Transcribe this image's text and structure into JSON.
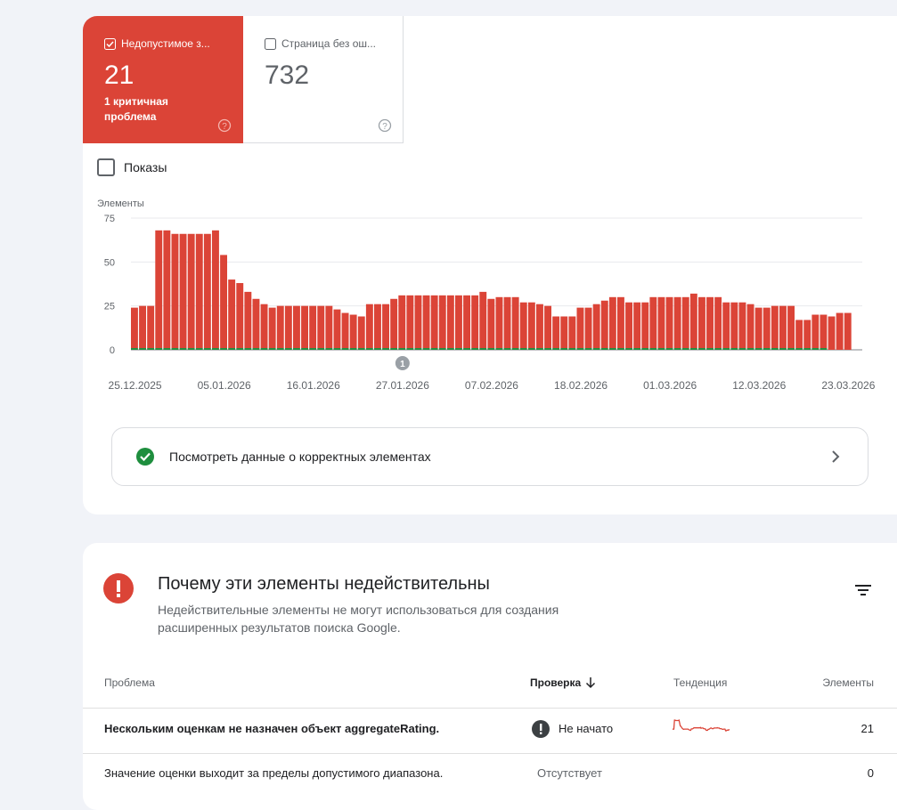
{
  "tiles": [
    {
      "label": "Недопустимое з...",
      "value": 21,
      "note": "1 критичная проблема",
      "checked": true
    },
    {
      "label": "Страница без ош...",
      "value": 732,
      "checked": false
    }
  ],
  "impressions_label": "Показы",
  "chart_data": {
    "type": "bar",
    "stacked": true,
    "y_label": "Элементы",
    "categories": [
      "25.12.2025",
      null,
      null,
      null,
      null,
      null,
      null,
      null,
      null,
      null,
      null,
      "05.01.2026",
      null,
      null,
      null,
      null,
      null,
      null,
      null,
      null,
      null,
      null,
      "16.01.2026",
      null,
      null,
      null,
      null,
      null,
      null,
      null,
      null,
      null,
      null,
      "27.01.2026",
      null,
      null,
      null,
      null,
      null,
      null,
      null,
      null,
      null,
      null,
      "07.02.2026",
      null,
      null,
      null,
      null,
      null,
      null,
      null,
      null,
      null,
      null,
      "18.02.2026",
      null,
      null,
      null,
      null,
      null,
      null,
      null,
      null,
      null,
      null,
      "01.03.2026",
      null,
      null,
      null,
      null,
      null,
      null,
      null,
      null,
      null,
      null,
      "12.03.2026",
      null,
      null,
      null,
      null,
      null,
      null,
      null,
      null,
      null,
      null,
      "23.03.2026"
    ],
    "series": [
      {
        "color": "#1e8e3e",
        "values": [
          1,
          1,
          1,
          1,
          1,
          1,
          1,
          1,
          1,
          1,
          1,
          1,
          1,
          1,
          1,
          1,
          1,
          1,
          1,
          1,
          1,
          1,
          1,
          1,
          1,
          1,
          1,
          1,
          1,
          1,
          1,
          1,
          1,
          1,
          1,
          1,
          1,
          1,
          1,
          1,
          1,
          1,
          1,
          1,
          1,
          1,
          1,
          1,
          1,
          1,
          1,
          1,
          1,
          1,
          1,
          1,
          1,
          1,
          1,
          1,
          1,
          1,
          1,
          1,
          1,
          1,
          1,
          1,
          1,
          1,
          1,
          1,
          1,
          1,
          1,
          1,
          1,
          1,
          1,
          1,
          1,
          1,
          1,
          1,
          1,
          1,
          0,
          0,
          0
        ]
      },
      {
        "color": "#db4437",
        "values": [
          23,
          24,
          24,
          67,
          67,
          65,
          65,
          65,
          65,
          65,
          67,
          53,
          39,
          37,
          32,
          28,
          25,
          23,
          24,
          24,
          24,
          24,
          24,
          24,
          24,
          22,
          20,
          19,
          18,
          25,
          25,
          25,
          28,
          30,
          30,
          30,
          30,
          30,
          30,
          30,
          30,
          30,
          30,
          32,
          28,
          29,
          29,
          29,
          26,
          26,
          25,
          24,
          18,
          18,
          18,
          23,
          23,
          25,
          27,
          29,
          29,
          26,
          26,
          26,
          29,
          29,
          29,
          29,
          29,
          31,
          29,
          29,
          29,
          26,
          26,
          26,
          25,
          23,
          23,
          24,
          24,
          24,
          16,
          16,
          19,
          19,
          19,
          21,
          21
        ]
      }
    ],
    "ylim": [
      0,
      75
    ],
    "yticks": [
      0,
      25,
      50,
      75
    ],
    "grid": true,
    "annotations": [
      {
        "index": 33,
        "text": "1"
      }
    ]
  },
  "valid_link": "Посмотреть данные о корректных элементах",
  "issues": {
    "title": "Почему эти элементы недействительны",
    "description": "Недействительные элементы не могут использоваться для создания расширенных результатов поиска Google.",
    "columns": [
      "Проблема",
      "Проверка",
      "Тенденция",
      "Элементы"
    ],
    "rows": [
      {
        "problem": "Нескольким оценкам не назначен объект aggregateRating.",
        "status": "Не начато",
        "count": 21
      },
      {
        "problem": "Значение оценки выходит за пределы допустимого диапазона.",
        "status": "Отсутствует",
        "count": 0
      }
    ]
  }
}
